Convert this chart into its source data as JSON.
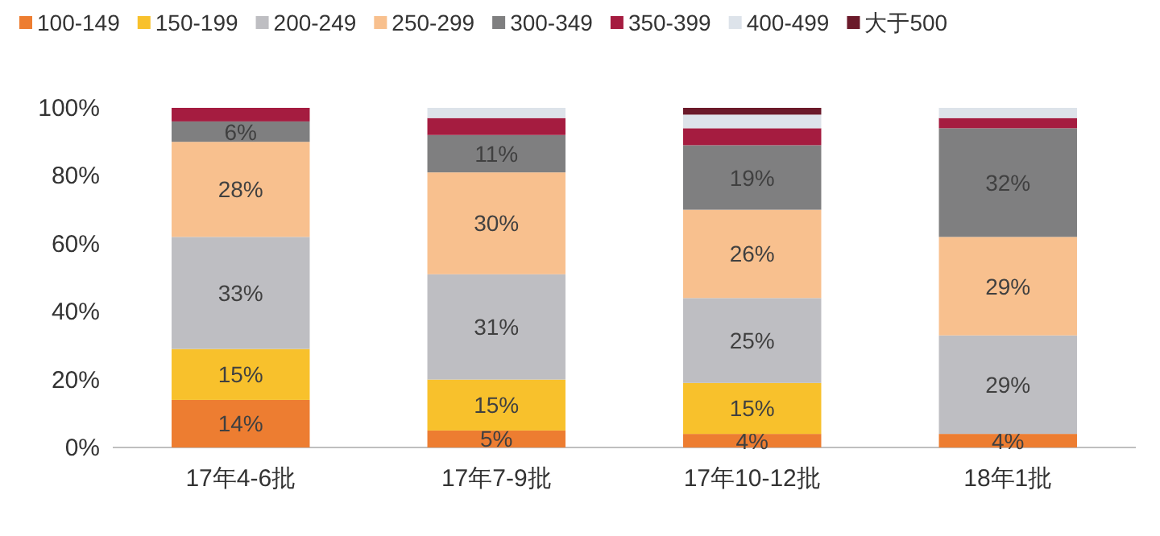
{
  "chart_data": {
    "type": "bar",
    "stacked": true,
    "legend": "top",
    "categories": [
      "17年4-6批",
      "17年7-9批",
      "17年10-12批",
      "18年1批"
    ],
    "ylim": [
      0,
      100
    ],
    "yticks": [
      {
        "value": 0,
        "label": "0%"
      },
      {
        "value": 20,
        "label": "20%"
      },
      {
        "value": 40,
        "label": "40%"
      },
      {
        "value": 60,
        "label": "60%"
      },
      {
        "value": 80,
        "label": "80%"
      },
      {
        "value": 100,
        "label": "100%"
      }
    ],
    "series": [
      {
        "name": "100-149",
        "color": "#ed7d31",
        "values": [
          14,
          5,
          4,
          4
        ],
        "value_labels": [
          "14%",
          "5%",
          "4%",
          "4%"
        ]
      },
      {
        "name": "150-199",
        "color": "#f8c12c",
        "values": [
          15,
          15,
          15,
          0
        ],
        "value_labels": [
          "15%",
          "15%",
          "15%",
          null
        ]
      },
      {
        "name": "200-249",
        "color": "#bebec2",
        "values": [
          33,
          31,
          25,
          29
        ],
        "value_labels": [
          "33%",
          "31%",
          "25%",
          "29%"
        ]
      },
      {
        "name": "250-299",
        "color": "#f8c08e",
        "values": [
          28,
          30,
          26,
          29
        ],
        "value_labels": [
          "28%",
          "30%",
          "26%",
          "29%"
        ]
      },
      {
        "name": "300-349",
        "color": "#7f7f80",
        "values": [
          6,
          11,
          19,
          32
        ],
        "value_labels": [
          "6%",
          "11%",
          "19%",
          "32%"
        ]
      },
      {
        "name": "350-399",
        "color": "#a51c40",
        "values": [
          4,
          5,
          5,
          3
        ]
      },
      {
        "name": "400-499",
        "color": "#dde3ea",
        "values": [
          0,
          3,
          4,
          3
        ]
      },
      {
        "name": "大于500",
        "color": "#6b1a2a",
        "values": [
          0,
          0,
          2,
          0
        ]
      }
    ]
  }
}
